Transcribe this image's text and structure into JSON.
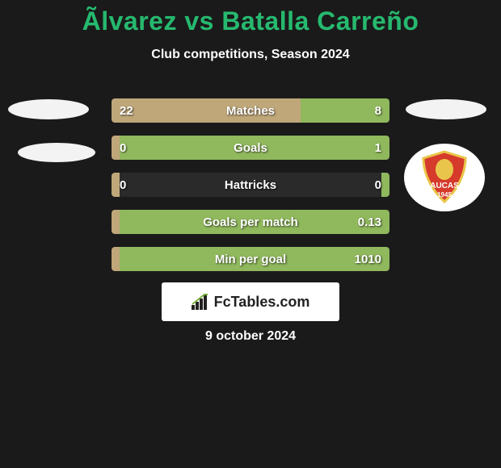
{
  "title": "Ãlvarez vs Batalla Carreño",
  "subtitle": "Club competitions, Season 2024",
  "date": "9 october 2024",
  "branding": {
    "text": "FcTables.com"
  },
  "colors": {
    "left_bar": "#bfa77a",
    "right_bar": "#90b85d",
    "accent_title": "#26b96f",
    "row_bg": "#2a2a2a",
    "background": "#1a1a1a"
  },
  "logos": {
    "right_2_shield": {
      "bg": "#d63a2b",
      "border": "#e9c64b",
      "label": "AUCAS",
      "year": "1945"
    }
  },
  "stats": [
    {
      "label": "Matches",
      "left_value": "22",
      "right_value": "8",
      "left_pct": 68,
      "right_pct": 32
    },
    {
      "label": "Goals",
      "left_value": "0",
      "right_value": "1",
      "left_pct": 3,
      "right_pct": 97
    },
    {
      "label": "Hattricks",
      "left_value": "0",
      "right_value": "0",
      "left_pct": 3,
      "right_pct": 3
    },
    {
      "label": "Goals per match",
      "left_value": "",
      "right_value": "0.13",
      "left_pct": 3,
      "right_pct": 97
    },
    {
      "label": "Min per goal",
      "left_value": "",
      "right_value": "1010",
      "left_pct": 3,
      "right_pct": 97
    }
  ]
}
